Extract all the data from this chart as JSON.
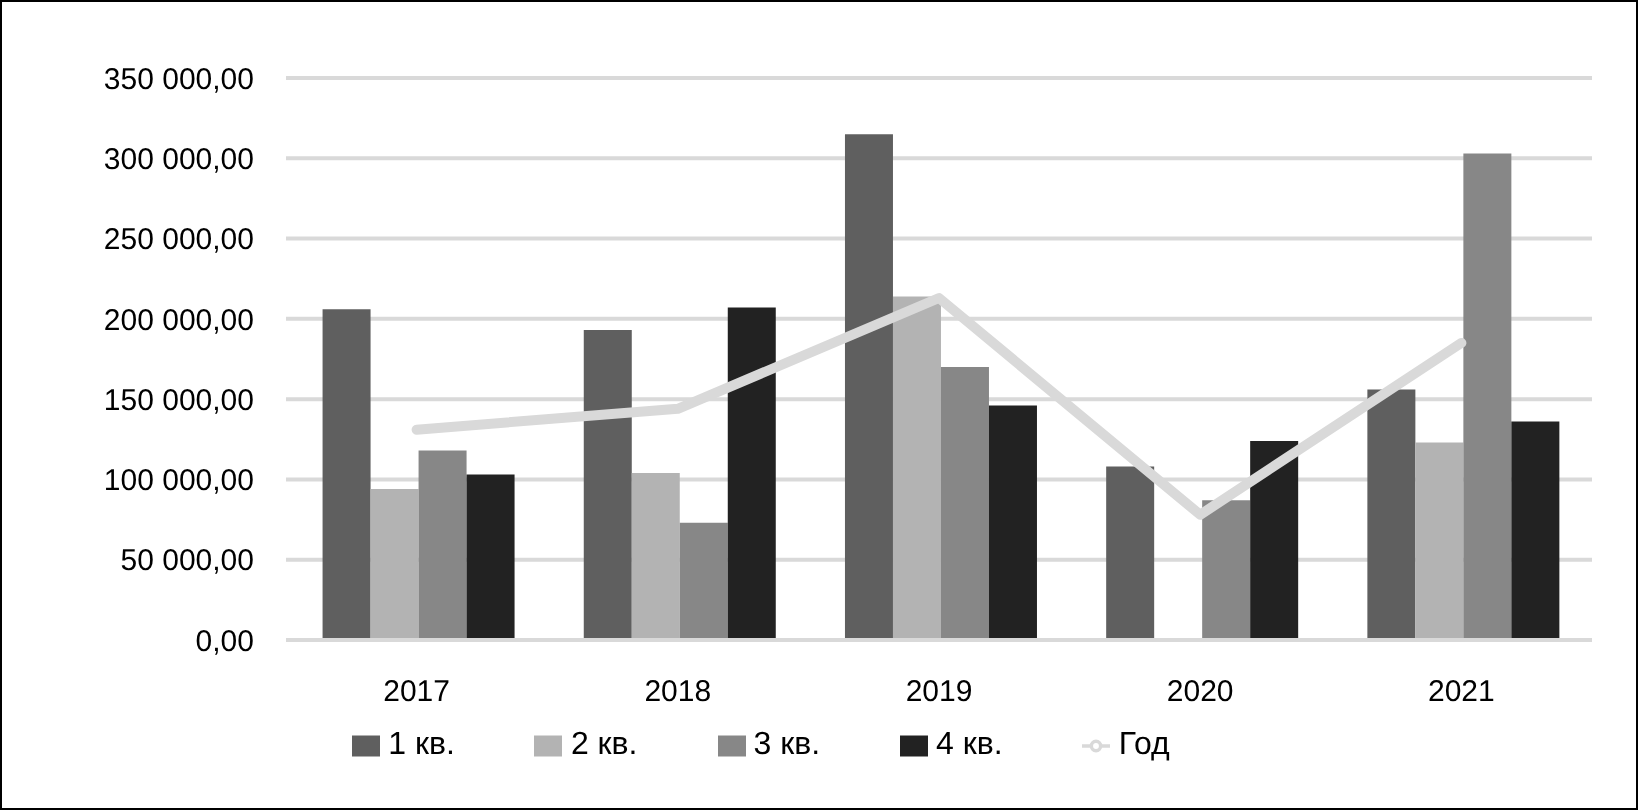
{
  "chart_data": {
    "type": "bar",
    "categories": [
      "2017",
      "2018",
      "2019",
      "2020",
      "2021"
    ],
    "series": [
      {
        "name": "1 кв.",
        "color": "#5f5f5f",
        "values": [
          206000,
          193000,
          315000,
          108000,
          156000
        ]
      },
      {
        "name": "2 кв.",
        "color": "#b3b3b3",
        "values": [
          94000,
          104000,
          214000,
          0,
          123000
        ]
      },
      {
        "name": "3 кв.",
        "color": "#878787",
        "values": [
          118000,
          73000,
          170000,
          87000,
          303000
        ]
      },
      {
        "name": "4 кв.",
        "color": "#222222",
        "values": [
          103000,
          207000,
          146000,
          124000,
          136000
        ]
      },
      {
        "name": "Год",
        "type": "line",
        "color": "#d9d9d9",
        "values": [
          131000,
          144000,
          213000,
          78000,
          185000
        ]
      }
    ],
    "ylim": [
      0,
      350000
    ],
    "yticks": [
      {
        "value": 0,
        "label": "0,00"
      },
      {
        "value": 50000,
        "label": "50 000,00"
      },
      {
        "value": 100000,
        "label": "100 000,00"
      },
      {
        "value": 150000,
        "label": "150 000,00"
      },
      {
        "value": 200000,
        "label": "200 000,00"
      },
      {
        "value": 250000,
        "label": "250 000,00"
      },
      {
        "value": 300000,
        "label": "300 000,00"
      },
      {
        "value": 350000,
        "label": "350 000,00"
      }
    ],
    "grid": "y",
    "legend": "bottom",
    "marker": "none"
  }
}
